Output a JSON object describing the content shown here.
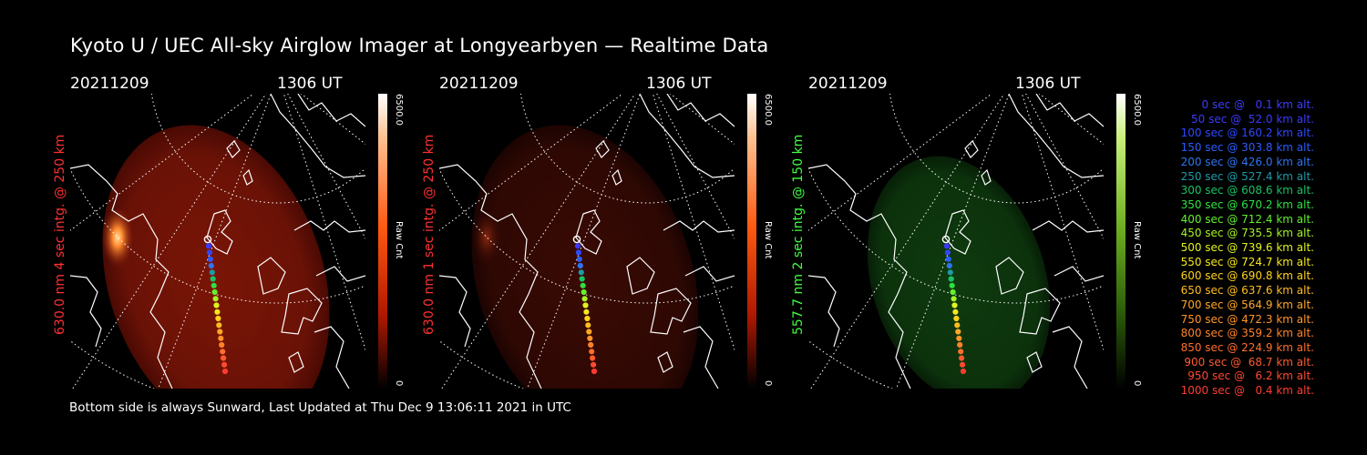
{
  "title": "Kyoto U / UEC All-sky Airglow Imager at Longyearbyen — Realtime Data",
  "footer": "Bottom side is always Sunward, Last Updated at Thu Dec  9 13:06:11 2021 in UTC",
  "chart_data": [
    {
      "type": "heatmap",
      "date": "20211209",
      "time": "1306 UT",
      "channel_label": "630.0 nm 4 sec intg. @ 250 km",
      "colorbar": {
        "max_label": "6500.0",
        "min_label": "0",
        "unit_label": "Raw Cnt",
        "colormap": "red"
      }
    },
    {
      "type": "heatmap",
      "date": "20211209",
      "time": "1306 UT",
      "channel_label": "630.0 nm 1 sec intg. @ 250 km",
      "colorbar": {
        "max_label": "6500.0",
        "min_label": "0",
        "unit_label": "Raw Cnt",
        "colormap": "red"
      }
    },
    {
      "type": "heatmap",
      "date": "20211209",
      "time": "1306 UT",
      "channel_label": "557.7 nm 2 sec intg. @ 150 km",
      "colorbar": {
        "max_label": "6500.0",
        "min_label": "0",
        "unit_label": "Raw Cnt",
        "colormap": "green"
      }
    }
  ],
  "trajectory": [
    {
      "label": " 0 sec @   0.1 km alt.",
      "color": "#3c3cff"
    },
    {
      "label": "50 sec @  52.0 km alt.",
      "color": "#3a3aff"
    },
    {
      "label": "100 sec @ 160.2 km alt.",
      "color": "#2f48ff"
    },
    {
      "label": "150 sec @ 303.8 km alt.",
      "color": "#2a5cff"
    },
    {
      "label": "200 sec @ 426.0 km alt.",
      "color": "#2f74f0"
    },
    {
      "label": "250 sec @ 527.4 km alt.",
      "color": "#1f9aa8"
    },
    {
      "label": "300 sec @ 608.6 km alt.",
      "color": "#19c266"
    },
    {
      "label": "350 sec @ 670.2 km alt.",
      "color": "#2ee042"
    },
    {
      "label": "400 sec @ 712.4 km alt.",
      "color": "#63f02e"
    },
    {
      "label": "450 sec @ 735.5 km alt.",
      "color": "#a6f326"
    },
    {
      "label": "500 sec @ 739.6 km alt.",
      "color": "#dff21e"
    },
    {
      "label": "550 sec @ 724.7 km alt.",
      "color": "#f4e81a"
    },
    {
      "label": "600 sec @ 690.8 km alt.",
      "color": "#ffd21c"
    },
    {
      "label": "650 sec @ 637.6 km alt.",
      "color": "#ffbd22"
    },
    {
      "label": "700 sec @ 564.9 km alt.",
      "color": "#ffa726"
    },
    {
      "label": "750 sec @ 472.3 km alt.",
      "color": "#ff9428"
    },
    {
      "label": "800 sec @ 359.2 km alt.",
      "color": "#ff822a"
    },
    {
      "label": "850 sec @ 224.9 km alt.",
      "color": "#ff6e2c"
    },
    {
      "label": "900 sec @  68.7 km alt.",
      "color": "#ff5a2e"
    },
    {
      "label": "950 sec @   6.2 km alt.",
      "color": "#ff4a30"
    },
    {
      "label": "1000 sec @   0.4 km alt.",
      "color": "#ff3c32"
    }
  ],
  "colors": {
    "red_channel": "#ff3030",
    "green_channel": "#40ff40"
  }
}
